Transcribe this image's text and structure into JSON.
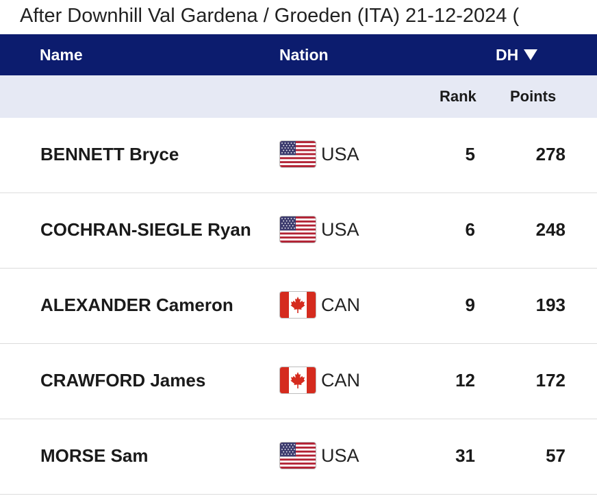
{
  "subtitle": "After Downhill Val Gardena / Groeden (ITA) 21-12-2024 (",
  "header": {
    "name_label": "Name",
    "nation_label": "Nation",
    "discipline_label": "DH",
    "sort_icon": "triangle-down-icon"
  },
  "subheader": {
    "rank_label": "Rank",
    "points_label": "Points"
  },
  "colors": {
    "header_bg": "#0c1c6e",
    "subheader_bg": "#e6e9f4"
  },
  "rows": [
    {
      "name": "BENNETT Bryce",
      "flag": "usa-flag-icon",
      "nation": "USA",
      "rank": "5",
      "points": "278"
    },
    {
      "name": "COCHRAN-SIEGLE Ryan",
      "flag": "usa-flag-icon",
      "nation": "USA",
      "rank": "6",
      "points": "248"
    },
    {
      "name": "ALEXANDER Cameron",
      "flag": "canada-flag-icon",
      "nation": "CAN",
      "rank": "9",
      "points": "193"
    },
    {
      "name": "CRAWFORD James",
      "flag": "canada-flag-icon",
      "nation": "CAN",
      "rank": "12",
      "points": "172"
    },
    {
      "name": "MORSE Sam",
      "flag": "usa-flag-icon",
      "nation": "USA",
      "rank": "31",
      "points": "57"
    }
  ]
}
